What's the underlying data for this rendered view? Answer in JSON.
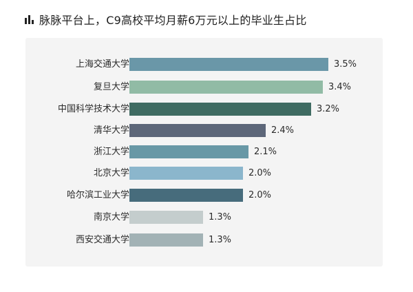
{
  "header": {
    "icon": "bar-chart-icon",
    "title": "脉脉平台上，C9高校平均月薪6万元以上的毕业生占比"
  },
  "chart_data": {
    "type": "bar",
    "orientation": "horizontal",
    "title": "脉脉平台上，C9高校平均月薪6万元以上的毕业生占比",
    "xlabel": "",
    "ylabel": "",
    "grid": false,
    "legend": null,
    "unit": "%",
    "categories": [
      "上海交通大学",
      "复旦大学",
      "中国科学技术大学",
      "清华大学",
      "浙江大学",
      "北京大学",
      "哈尔滨工业大学",
      "南京大学",
      "西安交通大学"
    ],
    "values": [
      3.5,
      3.4,
      3.2,
      2.4,
      2.1,
      2.0,
      2.0,
      1.3,
      1.3
    ],
    "value_labels": [
      "3.5%",
      "3.4%",
      "3.2%",
      "2.4%",
      "2.1%",
      "2.0%",
      "2.0%",
      "1.3%",
      "1.3%"
    ],
    "colors": [
      "#6a97a8",
      "#91bba5",
      "#3f6b62",
      "#5d6779",
      "#6898a6",
      "#8bb6cc",
      "#476c7c",
      "#c4cdcd",
      "#a2b2b5"
    ]
  }
}
